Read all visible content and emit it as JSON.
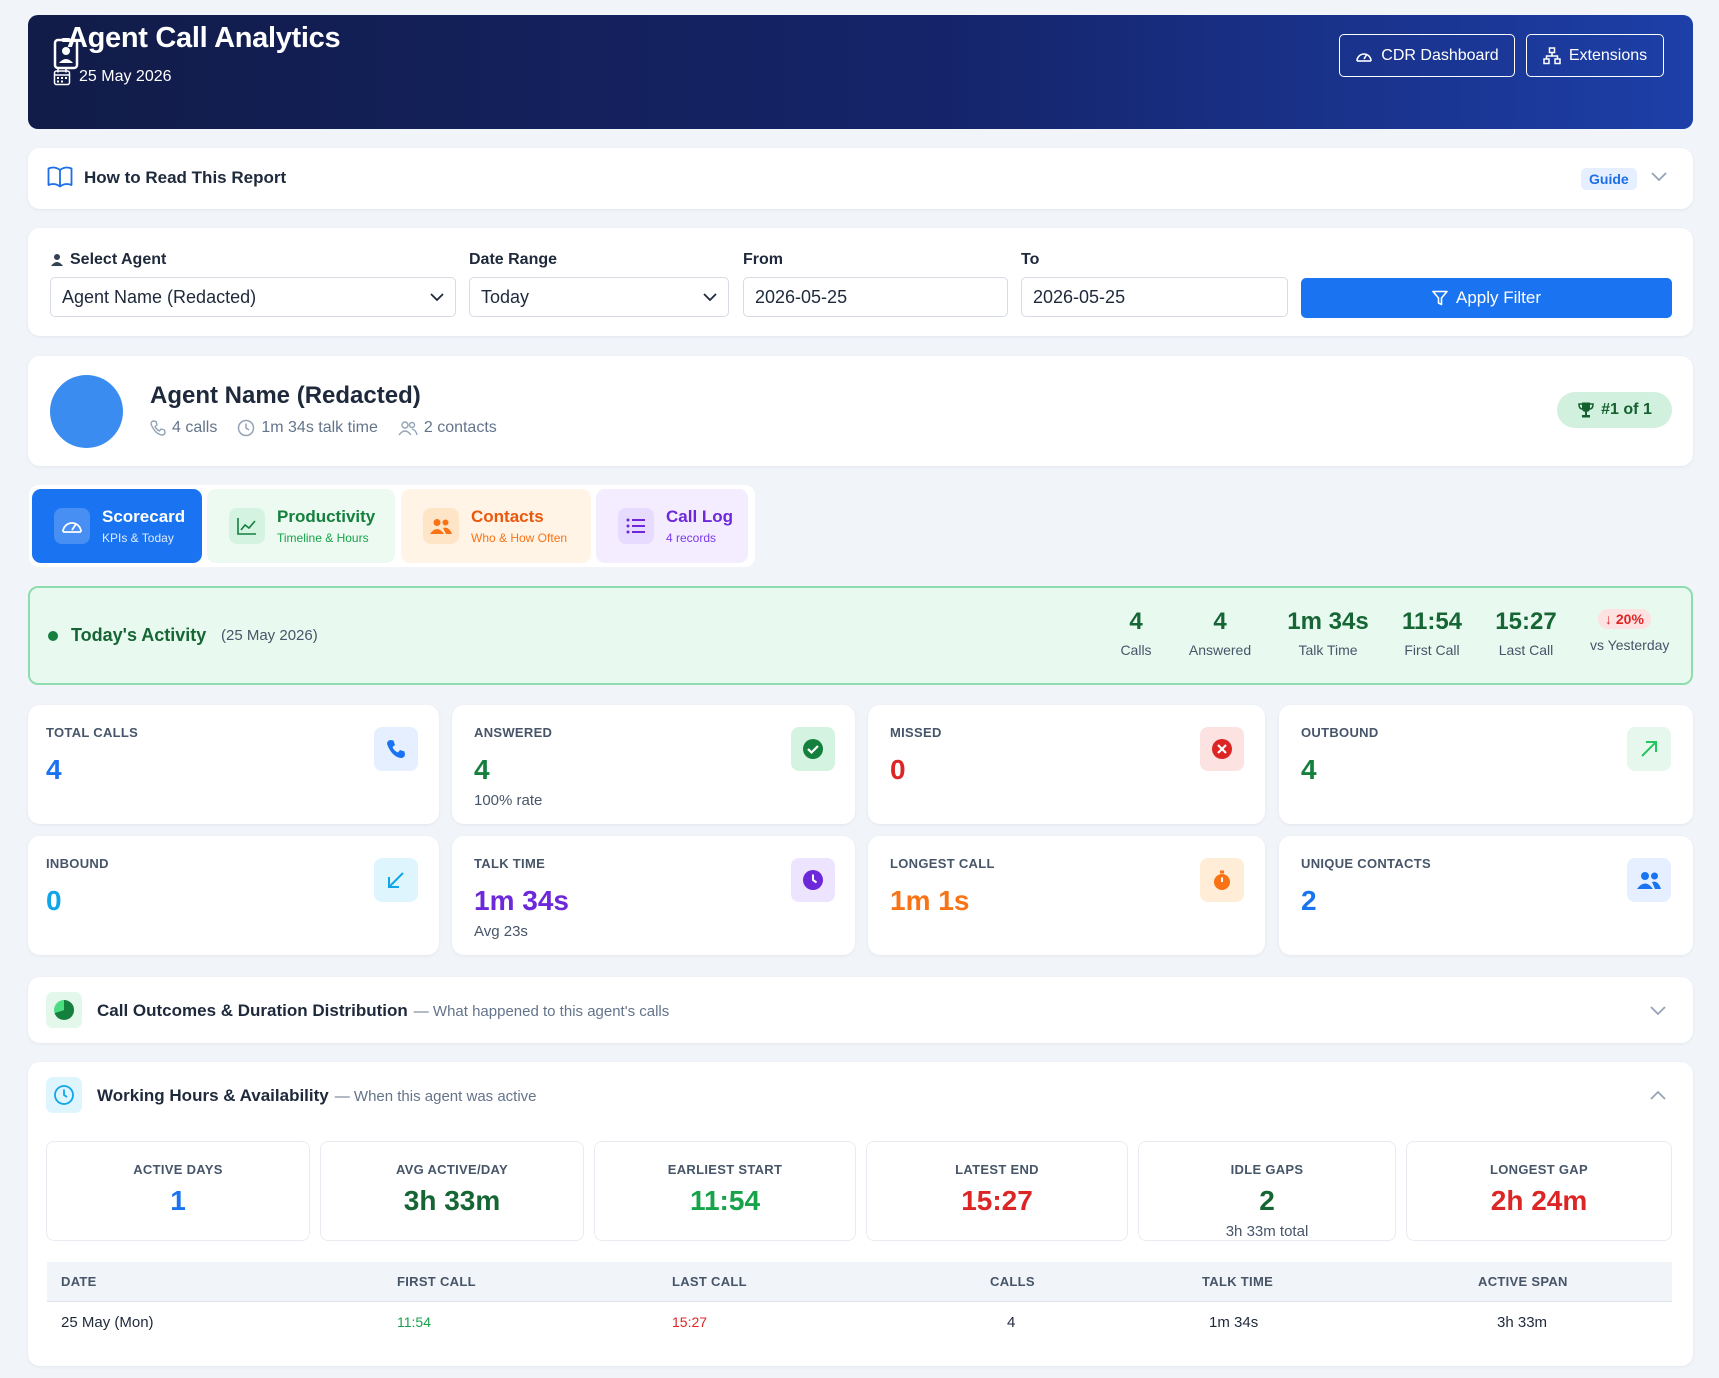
{
  "header": {
    "title": "Agent Call Analytics",
    "date": "25 May 2026",
    "buttons": {
      "cdr": "CDR Dashboard",
      "extensions": "Extensions"
    }
  },
  "guide": {
    "title": "How to Read This Report",
    "badge": "Guide"
  },
  "filter": {
    "agent_label": "Select Agent",
    "agent_value": "Agent Name (Redacted)",
    "range_label": "Date Range",
    "range_value": "Today",
    "from_label": "From",
    "from_value": "2026-05-25",
    "to_label": "To",
    "to_value": "2026-05-25",
    "apply": "Apply Filter"
  },
  "agent": {
    "name": "Agent Name (Redacted)",
    "calls": "4 calls",
    "talk": "1m 34s talk time",
    "contacts": "2 contacts",
    "rank": "#1 of 1"
  },
  "tabs": [
    {
      "title": "Scorecard",
      "sub": "KPIs & Today"
    },
    {
      "title": "Productivity",
      "sub": "Timeline & Hours"
    },
    {
      "title": "Contacts",
      "sub": "Who & How Often"
    },
    {
      "title": "Call Log",
      "sub": "4 records"
    }
  ],
  "today": {
    "title": "Today's Activity",
    "date": "(25 May 2026)",
    "stats": [
      {
        "value": "4",
        "label": "Calls"
      },
      {
        "value": "4",
        "label": "Answered"
      },
      {
        "value": "1m 34s",
        "label": "Talk Time"
      },
      {
        "value": "11:54",
        "label": "First Call"
      },
      {
        "value": "15:27",
        "label": "Last Call"
      }
    ],
    "change": "↓ 20%",
    "change_label": "vs Yesterday"
  },
  "kpis": [
    {
      "label": "TOTAL CALLS",
      "value": "4",
      "sub": ""
    },
    {
      "label": "ANSWERED",
      "value": "4",
      "sub": "100% rate"
    },
    {
      "label": "MISSED",
      "value": "0",
      "sub": ""
    },
    {
      "label": "OUTBOUND",
      "value": "4",
      "sub": ""
    },
    {
      "label": "INBOUND",
      "value": "0",
      "sub": ""
    },
    {
      "label": "TALK TIME",
      "value": "1m 34s",
      "sub": "Avg 23s"
    },
    {
      "label": "LONGEST CALL",
      "value": "1m 1s",
      "sub": ""
    },
    {
      "label": "UNIQUE CONTACTS",
      "value": "2",
      "sub": ""
    }
  ],
  "outcomes": {
    "title": "Call Outcomes & Duration Distribution",
    "sub": "— What happened to this agent's calls"
  },
  "working": {
    "title": "Working Hours & Availability",
    "sub": "— When this agent was active",
    "stats": [
      {
        "label": "ACTIVE DAYS",
        "value": "1",
        "sub": ""
      },
      {
        "label": "AVG ACTIVE/DAY",
        "value": "3h 33m",
        "sub": ""
      },
      {
        "label": "EARLIEST START",
        "value": "11:54",
        "sub": ""
      },
      {
        "label": "LATEST END",
        "value": "15:27",
        "sub": ""
      },
      {
        "label": "IDLE GAPS",
        "value": "2",
        "sub": "3h 33m total"
      },
      {
        "label": "LONGEST GAP",
        "value": "2h 24m",
        "sub": ""
      }
    ],
    "table": {
      "headers": [
        "DATE",
        "FIRST CALL",
        "LAST CALL",
        "CALLS",
        "TALK TIME",
        "ACTIVE SPAN"
      ],
      "rows": [
        {
          "date": "25 May (Mon)",
          "first": "11:54",
          "last": "15:27",
          "calls": "4",
          "talk": "1m 34s",
          "span": "3h 33m"
        }
      ]
    }
  },
  "colors": {
    "primary": "#1a73f0",
    "green": "#15803d",
    "red": "#dc2626",
    "purple": "#6d28d9",
    "orange": "#f97316",
    "cyan": "#0ea5e9"
  }
}
